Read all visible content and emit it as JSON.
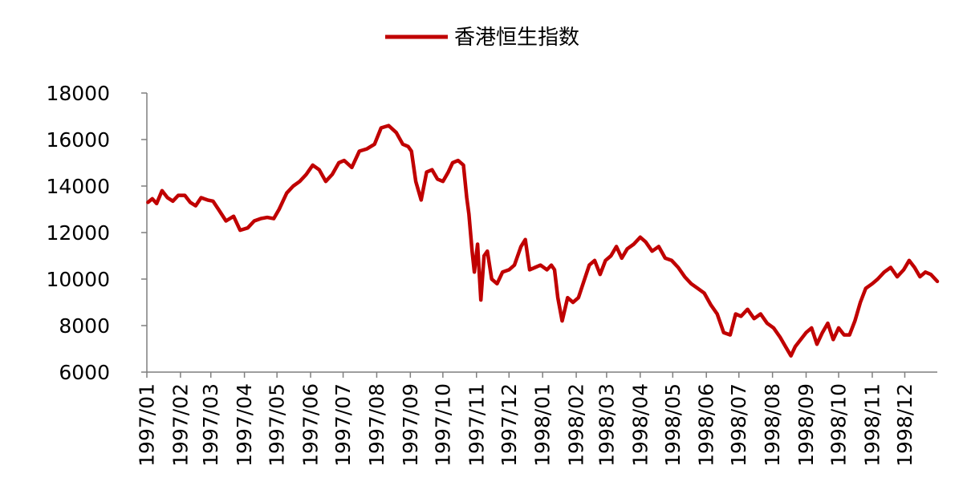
{
  "chart_data": {
    "type": "line",
    "title": "",
    "xlabel": "",
    "ylabel": "",
    "legend": {
      "position": "top-center",
      "entries": [
        "香港恒生指数"
      ]
    },
    "ylim": [
      6000,
      18000
    ],
    "yticks": [
      6000,
      8000,
      10000,
      12000,
      14000,
      16000,
      18000
    ],
    "xticks": [
      "1997/01",
      "1997/02",
      "1997/03",
      "1997/04",
      "1997/05",
      "1997/06",
      "1997/07",
      "1997/08",
      "1997/09",
      "1997/10",
      "1997/11",
      "1997/12",
      "1998/01",
      "1998/02",
      "1998/03",
      "1998/04",
      "1998/05",
      "1998/06",
      "1998/07",
      "1998/08",
      "1998/09",
      "1998/10",
      "1998/11",
      "1998/12"
    ],
    "xlim": [
      "1997-01-01",
      "1998-12-31"
    ],
    "grid": false,
    "color": "#c00000",
    "series": [
      {
        "name": "香港恒生指数",
        "x": [
          "1997-01-02",
          "1997-01-06",
          "1997-01-10",
          "1997-01-15",
          "1997-01-20",
          "1997-01-25",
          "1997-01-30",
          "1997-02-05",
          "1997-02-10",
          "1997-02-15",
          "1997-02-20",
          "1997-02-26",
          "1997-03-03",
          "1997-03-08",
          "1997-03-15",
          "1997-03-22",
          "1997-03-28",
          "1997-04-04",
          "1997-04-10",
          "1997-04-16",
          "1997-04-22",
          "1997-04-28",
          "1997-05-03",
          "1997-05-10",
          "1997-05-16",
          "1997-05-22",
          "1997-05-28",
          "1997-06-03",
          "1997-06-09",
          "1997-06-15",
          "1997-06-21",
          "1997-06-27",
          "1997-07-02",
          "1997-07-09",
          "1997-07-16",
          "1997-07-23",
          "1997-07-30",
          "1997-08-05",
          "1997-08-12",
          "1997-08-19",
          "1997-08-25",
          "1997-08-30",
          "1997-09-02",
          "1997-09-06",
          "1997-09-11",
          "1997-09-16",
          "1997-09-21",
          "1997-09-26",
          "1997-10-01",
          "1997-10-06",
          "1997-10-10",
          "1997-10-15",
          "1997-10-20",
          "1997-10-23",
          "1997-10-25",
          "1997-10-28",
          "1997-10-30",
          "1997-11-02",
          "1997-11-05",
          "1997-11-08",
          "1997-11-11",
          "1997-11-15",
          "1997-11-20",
          "1997-11-25",
          "1997-12-01",
          "1997-12-06",
          "1997-12-12",
          "1997-12-16",
          "1997-12-20",
          "1997-12-25",
          "1997-12-30",
          "1998-01-05",
          "1998-01-09",
          "1998-01-12",
          "1998-01-15",
          "1998-01-19",
          "1998-01-24",
          "1998-01-29",
          "1998-02-03",
          "1998-02-08",
          "1998-02-13",
          "1998-02-18",
          "1998-02-23",
          "1998-02-28",
          "1998-03-05",
          "1998-03-10",
          "1998-03-15",
          "1998-03-20",
          "1998-03-26",
          "1998-04-01",
          "1998-04-06",
          "1998-04-12",
          "1998-04-18",
          "1998-04-24",
          "1998-04-30",
          "1998-05-06",
          "1998-05-12",
          "1998-05-18",
          "1998-05-24",
          "1998-05-30",
          "1998-06-05",
          "1998-06-11",
          "1998-06-17",
          "1998-06-23",
          "1998-06-28",
          "1998-07-03",
          "1998-07-09",
          "1998-07-15",
          "1998-07-21",
          "1998-07-27",
          "1998-08-02",
          "1998-08-08",
          "1998-08-13",
          "1998-08-18",
          "1998-08-22",
          "1998-08-27",
          "1998-09-01",
          "1998-09-06",
          "1998-09-11",
          "1998-09-16",
          "1998-09-21",
          "1998-09-26",
          "1998-10-01",
          "1998-10-06",
          "1998-10-11",
          "1998-10-16",
          "1998-10-21",
          "1998-10-26",
          "1998-11-01",
          "1998-11-06",
          "1998-11-12",
          "1998-11-18",
          "1998-11-24",
          "1998-11-30",
          "1998-12-05",
          "1998-12-10",
          "1998-12-15",
          "1998-12-20",
          "1998-12-25",
          "1998-12-31"
        ],
        "values": [
          13300,
          13450,
          13250,
          13800,
          13500,
          13350,
          13600,
          13600,
          13300,
          13150,
          13500,
          13400,
          13350,
          13000,
          12500,
          12700,
          12100,
          12200,
          12500,
          12600,
          12650,
          12600,
          13000,
          13700,
          14000,
          14200,
          14500,
          14900,
          14700,
          14200,
          14500,
          15000,
          15100,
          14800,
          15500,
          15600,
          15800,
          16500,
          16600,
          16300,
          15800,
          15700,
          15500,
          14200,
          13400,
          14600,
          14700,
          14300,
          14200,
          14600,
          15000,
          15100,
          14900,
          13500,
          12800,
          11200,
          10300,
          11500,
          9100,
          11000,
          11200,
          10000,
          9800,
          10300,
          10400,
          10600,
          11400,
          11700,
          10400,
          10500,
          10600,
          10400,
          10600,
          10400,
          9200,
          8200,
          9200,
          9000,
          9200,
          9900,
          10600,
          10800,
          10200,
          10800,
          11000,
          11400,
          10900,
          11300,
          11500,
          11800,
          11600,
          11200,
          11400,
          10900,
          10800,
          10500,
          10100,
          9800,
          9600,
          9400,
          8900,
          8500,
          7700,
          7600,
          8500,
          8400,
          8700,
          8300,
          8500,
          8100,
          7900,
          7500,
          7100,
          6700,
          7100,
          7400,
          7700,
          7900,
          7200,
          7700,
          8100,
          7400,
          7900,
          7600,
          7600,
          8200,
          9000,
          9600,
          9800,
          10000,
          10300,
          10500,
          10100,
          10400,
          10800,
          10500,
          10100,
          10300,
          10200,
          9900
        ]
      }
    ]
  }
}
